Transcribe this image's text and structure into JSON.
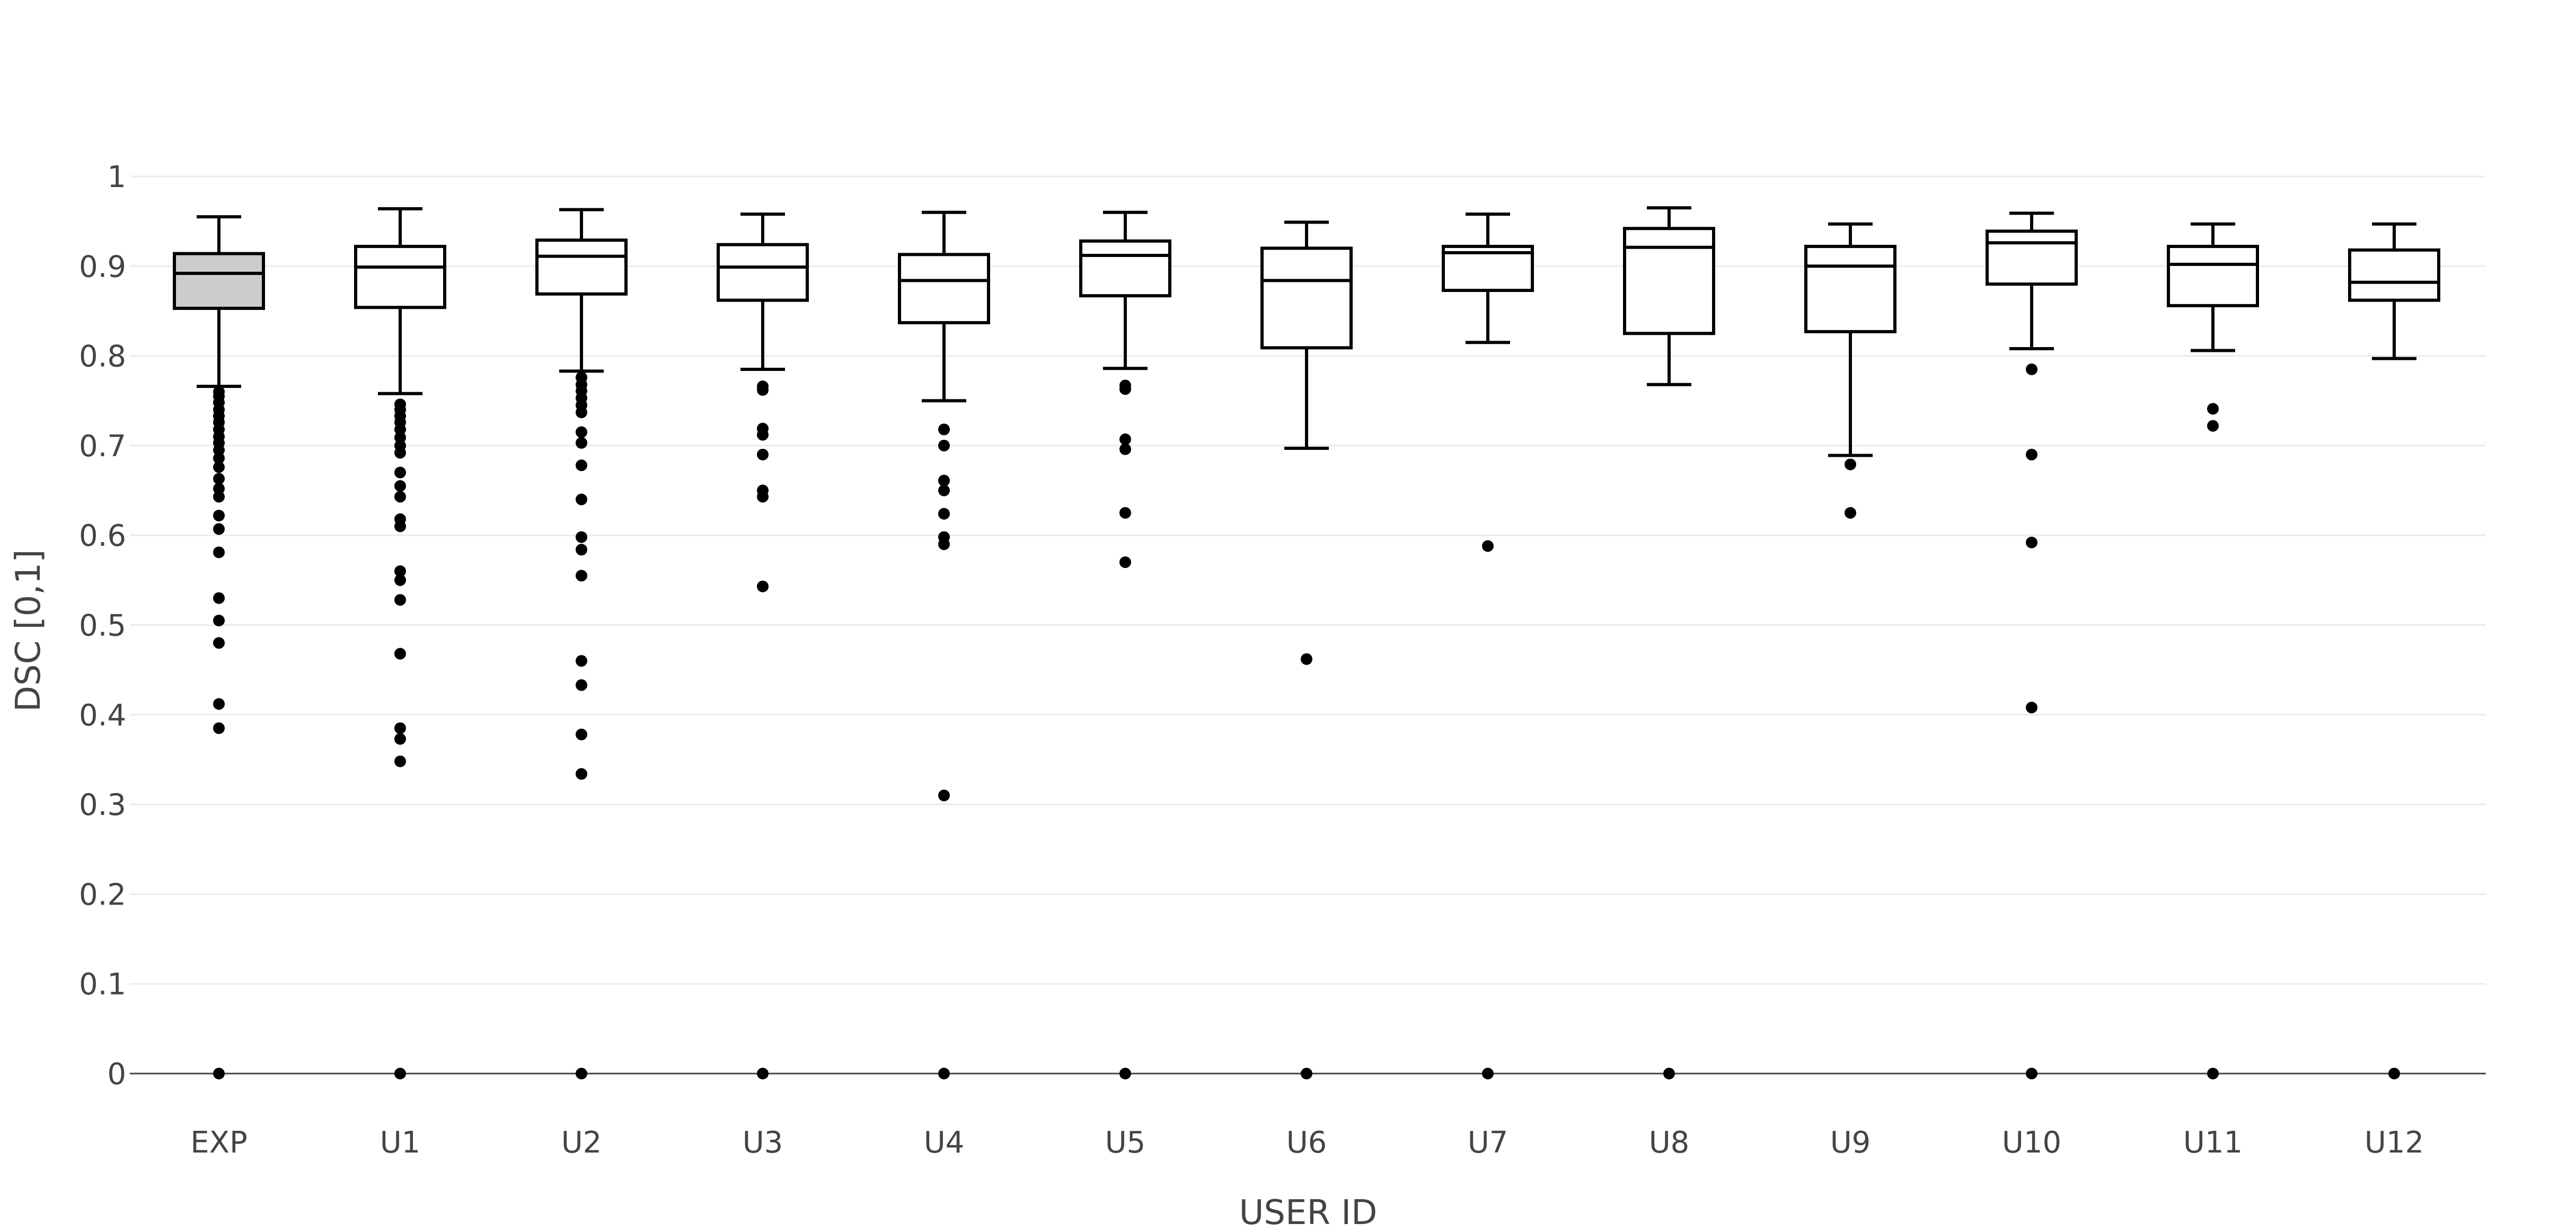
{
  "chart_data": {
    "type": "box",
    "xlabel": "USER ID",
    "ylabel": "DSC [0,1]",
    "ylim": [
      0,
      1
    ],
    "yticks": [
      0,
      0.1,
      0.2,
      0.3,
      0.4,
      0.5,
      0.6,
      0.7,
      0.8,
      0.9,
      1
    ],
    "ytick_labels": [
      "0",
      "0.1",
      "0.2",
      "0.3",
      "0.4",
      "0.5",
      "0.6",
      "0.7",
      "0.8",
      "0.9",
      "1"
    ],
    "grid": true,
    "categories": [
      "EXP",
      "U1",
      "U2",
      "U3",
      "U4",
      "U5",
      "U6",
      "U7",
      "U8",
      "U9",
      "U10",
      "U11",
      "U12"
    ],
    "colors": {
      "EXP": "#cccccc",
      "default": "#ffffff",
      "stroke": "#000000"
    },
    "boxes": [
      {
        "label": "EXP",
        "whisker_low": 0.766,
        "q1": 0.853,
        "median": 0.892,
        "q3": 0.914,
        "whisker_high": 0.955,
        "outliers": [
          0.76,
          0.755,
          0.748,
          0.74,
          0.733,
          0.726,
          0.718,
          0.71,
          0.703,
          0.695,
          0.686,
          0.676,
          0.663,
          0.652,
          0.643,
          0.622,
          0.607,
          0.581,
          0.53,
          0.505,
          0.48,
          0.412,
          0.385,
          0
        ]
      },
      {
        "label": "U1",
        "whisker_low": 0.758,
        "q1": 0.854,
        "median": 0.899,
        "q3": 0.922,
        "whisker_high": 0.964,
        "outliers": [
          0.746,
          0.74,
          0.733,
          0.726,
          0.718,
          0.709,
          0.7,
          0.692,
          0.67,
          0.655,
          0.643,
          0.618,
          0.61,
          0.56,
          0.55,
          0.528,
          0.468,
          0.385,
          0.373,
          0.348,
          0
        ]
      },
      {
        "label": "U2",
        "whisker_low": 0.783,
        "q1": 0.869,
        "median": 0.911,
        "q3": 0.929,
        "whisker_high": 0.963,
        "outliers": [
          0.776,
          0.768,
          0.761,
          0.753,
          0.745,
          0.737,
          0.715,
          0.703,
          0.678,
          0.64,
          0.598,
          0.584,
          0.555,
          0.46,
          0.433,
          0.378,
          0.334,
          0
        ]
      },
      {
        "label": "U3",
        "whisker_low": 0.785,
        "q1": 0.862,
        "median": 0.899,
        "q3": 0.924,
        "whisker_high": 0.958,
        "outliers": [
          0.766,
          0.762,
          0.719,
          0.712,
          0.69,
          0.65,
          0.643,
          0.543,
          0
        ]
      },
      {
        "label": "U4",
        "whisker_low": 0.75,
        "q1": 0.837,
        "median": 0.884,
        "q3": 0.913,
        "whisker_high": 0.96,
        "outliers": [
          0.718,
          0.7,
          0.661,
          0.65,
          0.624,
          0.598,
          0.59,
          0.31,
          0
        ]
      },
      {
        "label": "U5",
        "whisker_low": 0.786,
        "q1": 0.867,
        "median": 0.912,
        "q3": 0.928,
        "whisker_high": 0.96,
        "outliers": [
          0.767,
          0.763,
          0.707,
          0.696,
          0.625,
          0.57,
          0
        ]
      },
      {
        "label": "U6",
        "whisker_low": 0.697,
        "q1": 0.809,
        "median": 0.884,
        "q3": 0.92,
        "whisker_high": 0.949,
        "outliers": [
          0.462,
          0
        ]
      },
      {
        "label": "U7",
        "whisker_low": 0.815,
        "q1": 0.873,
        "median": 0.915,
        "q3": 0.922,
        "whisker_high": 0.958,
        "outliers": [
          0.588,
          0
        ]
      },
      {
        "label": "U8",
        "whisker_low": 0.768,
        "q1": 0.825,
        "median": 0.921,
        "q3": 0.942,
        "whisker_high": 0.965,
        "outliers": [
          0
        ]
      },
      {
        "label": "U9",
        "whisker_low": 0.689,
        "q1": 0.827,
        "median": 0.9,
        "q3": 0.922,
        "whisker_high": 0.947,
        "outliers": [
          0.679,
          0.625
        ]
      },
      {
        "label": "U10",
        "whisker_low": 0.808,
        "q1": 0.88,
        "median": 0.926,
        "q3": 0.939,
        "whisker_high": 0.959,
        "outliers": [
          0.785,
          0.69,
          0.592,
          0.408,
          0
        ]
      },
      {
        "label": "U11",
        "whisker_low": 0.806,
        "q1": 0.856,
        "median": 0.902,
        "q3": 0.922,
        "whisker_high": 0.947,
        "outliers": [
          0.741,
          0.722,
          0
        ]
      },
      {
        "label": "U12",
        "whisker_low": 0.797,
        "q1": 0.862,
        "median": 0.882,
        "q3": 0.918,
        "whisker_high": 0.947,
        "outliers": [
          0
        ]
      }
    ]
  }
}
